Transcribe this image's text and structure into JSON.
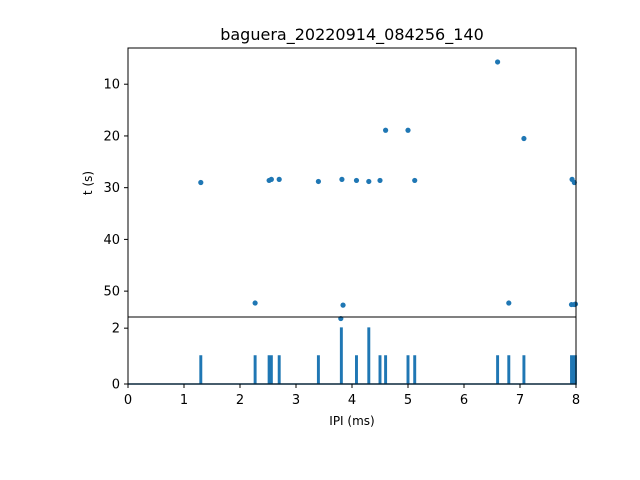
{
  "chart_data": {
    "title": "baguera_20220914_084256_140",
    "color": "#1f77b4",
    "panels": [
      {
        "type": "scatter",
        "xlim": [
          0,
          8
        ],
        "ylim": [
          55,
          3
        ],
        "y_inverted": true,
        "ylabel": "t (s)",
        "yticks": [
          10,
          20,
          30,
          40,
          50
        ],
        "points": [
          [
            6.6,
            5.7
          ],
          [
            4.6,
            18.9
          ],
          [
            5.0,
            18.9
          ],
          [
            7.07,
            20.5
          ],
          [
            1.3,
            29.0
          ],
          [
            2.52,
            28.6
          ],
          [
            2.56,
            28.4
          ],
          [
            2.7,
            28.4
          ],
          [
            3.4,
            28.8
          ],
          [
            3.82,
            28.4
          ],
          [
            4.08,
            28.6
          ],
          [
            4.3,
            28.8
          ],
          [
            4.5,
            28.6
          ],
          [
            5.12,
            28.6
          ],
          [
            7.93,
            28.4
          ],
          [
            7.97,
            29.0
          ],
          [
            2.27,
            52.3
          ],
          [
            3.84,
            52.7
          ],
          [
            3.8,
            55.3
          ],
          [
            6.8,
            52.3
          ],
          [
            7.92,
            52.6
          ],
          [
            7.97,
            52.6
          ],
          [
            7.99,
            52.5
          ]
        ]
      },
      {
        "type": "line",
        "xlim": [
          0,
          8
        ],
        "ylim": [
          0,
          2.4
        ],
        "xlabel": "IPI (ms)",
        "xticks": [
          0,
          1,
          2,
          3,
          4,
          5,
          6,
          7,
          8
        ],
        "yticks": [
          0,
          2
        ],
        "spikes": [
          [
            1.3,
            1
          ],
          [
            2.27,
            1
          ],
          [
            2.52,
            1
          ],
          [
            2.56,
            1
          ],
          [
            2.7,
            1
          ],
          [
            3.4,
            1
          ],
          [
            3.81,
            2
          ],
          [
            4.08,
            1
          ],
          [
            4.3,
            2
          ],
          [
            4.5,
            1
          ],
          [
            4.6,
            1
          ],
          [
            5.0,
            1
          ],
          [
            5.12,
            1
          ],
          [
            6.6,
            1
          ],
          [
            6.8,
            1
          ],
          [
            7.07,
            1
          ],
          [
            7.92,
            1
          ],
          [
            7.95,
            1
          ],
          [
            7.97,
            1
          ],
          [
            7.99,
            1
          ]
        ]
      }
    ]
  }
}
